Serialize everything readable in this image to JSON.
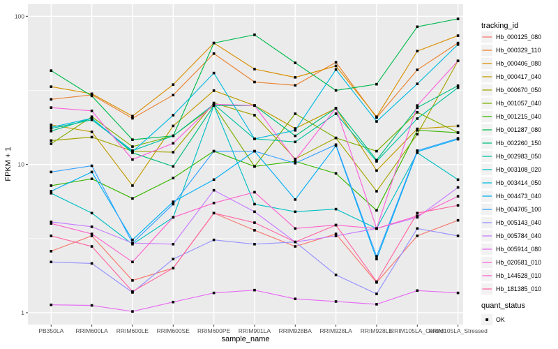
{
  "figure": {
    "x_axis_title": "sample_name",
    "y_axis_title": "FPKM + 1"
  },
  "legend": {
    "tracking_title": "tracking_id",
    "quant_title": "quant_status",
    "quant_items": [
      {
        "label": "OK",
        "marker": "black-square"
      }
    ]
  },
  "chart_data": {
    "type": "line",
    "title": "",
    "xlabel": "sample_name",
    "ylabel": "FPKM + 1",
    "y_scale": "log10",
    "ylim": [
      1,
      105
    ],
    "y_major_ticks": [
      1,
      10,
      100
    ],
    "y_minor_ticks": [
      3.162,
      31.62
    ],
    "grid": "on",
    "legend_position": "right",
    "panel_bg": "#EBEBEB",
    "grid_color": "#FFFFFF",
    "tick_label_color": "#4D4D4D",
    "point_marker": {
      "shape": "square",
      "color": "#000000"
    },
    "categories": [
      "PB350LA",
      "RRIM600LA",
      "RRIM600LE",
      "RRIM600SE",
      "RRIM600PE",
      "RRIM901LA",
      "RRIM928BA",
      "RRIM928LA",
      "RRIM928LE",
      "RRIM105LA_Control",
      "RRIM105LA_Stressed"
    ],
    "series": [
      {
        "name": "Hb_000125_080",
        "color": "#F8766D",
        "values": [
          2.6,
          3.3,
          1.65,
          2.0,
          4.7,
          3.6,
          2.8,
          3.4,
          1.6,
          3.3,
          4.2
        ]
      },
      {
        "name": "Hb_000329_110",
        "color": "#EA8331",
        "values": [
          27.5,
          29.5,
          20.5,
          29.4,
          56,
          36,
          34.2,
          48.9,
          20.7,
          43.5,
          66
        ]
      },
      {
        "name": "Hb_000406_080",
        "color": "#D89000",
        "values": [
          33.5,
          30,
          21.2,
          34.6,
          66,
          44,
          38.7,
          46.2,
          21,
          58.2,
          74
        ]
      },
      {
        "name": "Hb_000417_040",
        "color": "#C09B00",
        "values": [
          18.5,
          16.6,
          7.2,
          18.2,
          31.5,
          25,
          17.5,
          23.9,
          9.1,
          17.4,
          18.2
        ]
      },
      {
        "name": "Hb_000670_050",
        "color": "#A3A500",
        "values": [
          14.5,
          15.3,
          12.3,
          12.1,
          26,
          21.5,
          10.9,
          15.1,
          6.6,
          16,
          50
        ]
      },
      {
        "name": "Hb_001057_040",
        "color": "#7CAE00",
        "values": [
          13.8,
          21,
          13.2,
          15.6,
          25,
          9.7,
          22,
          15.1,
          12.3,
          22.5,
          16.4
        ]
      },
      {
        "name": "Hb_001215_040",
        "color": "#39B600",
        "values": [
          7.2,
          8.0,
          5.9,
          8.1,
          12.3,
          9.7,
          10.5,
          8.7,
          4.9,
          17,
          16.4
        ]
      },
      {
        "name": "Hb_001287_080",
        "color": "#00BB4E",
        "values": [
          43,
          29,
          14.7,
          15.6,
          66,
          75,
          48.5,
          31.6,
          34.8,
          85,
          96
        ]
      },
      {
        "name": "Hb_002260_150",
        "color": "#00BF7D",
        "values": [
          16.8,
          20.5,
          12.0,
          9.7,
          25,
          25,
          15.6,
          23.9,
          10.7,
          24.2,
          34
        ]
      },
      {
        "name": "Hb_002983_050",
        "color": "#00C1A3",
        "values": [
          17.5,
          20,
          12.4,
          15.6,
          25.5,
          14.9,
          14.2,
          22,
          10.5,
          20.4,
          33
        ]
      },
      {
        "name": "Hb_003108_020",
        "color": "#00BFC4",
        "values": [
          6.4,
          4.7,
          2.9,
          4.4,
          25,
          5.4,
          4.8,
          5.0,
          3.7,
          12.0,
          7.9
        ]
      },
      {
        "name": "Hb_003414_050",
        "color": "#00BAE0",
        "values": [
          17.8,
          20.5,
          12.2,
          21.5,
          41.4,
          14.9,
          17.0,
          43.7,
          19.5,
          35,
          64.5
        ]
      },
      {
        "name": "Hb_004473_040",
        "color": "#00B0F6",
        "values": [
          6.6,
          8.9,
          3.1,
          5.6,
          7.9,
          12.3,
          5.8,
          13.4,
          2.3,
          12.2,
          14.8
        ]
      },
      {
        "name": "Hb_004705_100",
        "color": "#35A2FF",
        "values": [
          8.9,
          9.8,
          2.95,
          5.4,
          12.3,
          12.3,
          10.2,
          13.6,
          2.4,
          12.4,
          15.0
        ]
      },
      {
        "name": "Hb_005143_040",
        "color": "#9590FF",
        "values": [
          2.2,
          2.15,
          1.37,
          2.3,
          3.1,
          2.9,
          3.0,
          1.8,
          1.34,
          3.7,
          3.3
        ]
      },
      {
        "name": "Hb_005784_040",
        "color": "#C77CFF",
        "values": [
          4.1,
          3.8,
          2.95,
          2.9,
          6.7,
          4.8,
          3.0,
          3.3,
          3.7,
          4.4,
          7.0
        ]
      },
      {
        "name": "Hb_005914_080",
        "color": "#E76BF3",
        "values": [
          1.13,
          1.12,
          1.02,
          1.18,
          1.36,
          1.42,
          1.24,
          1.19,
          1.14,
          1.41,
          1.36
        ]
      },
      {
        "name": "Hb_020581_010",
        "color": "#FA62DB",
        "values": [
          24.2,
          23,
          10.8,
          13.9,
          25.5,
          25,
          10.7,
          24,
          3.7,
          25,
          50
        ]
      },
      {
        "name": "Hb_144528_010",
        "color": "#FF61CC",
        "values": [
          4.0,
          3.4,
          2.2,
          4.4,
          5.5,
          6.5,
          3.7,
          3.9,
          3.7,
          4.5,
          6.1
        ]
      },
      {
        "name": "Hb_181385_010",
        "color": "#FF67A4",
        "values": [
          3.3,
          2.8,
          1.39,
          2.0,
          4.7,
          4.05,
          3.0,
          3.9,
          1.62,
          4.7,
          5.3
        ]
      }
    ]
  }
}
